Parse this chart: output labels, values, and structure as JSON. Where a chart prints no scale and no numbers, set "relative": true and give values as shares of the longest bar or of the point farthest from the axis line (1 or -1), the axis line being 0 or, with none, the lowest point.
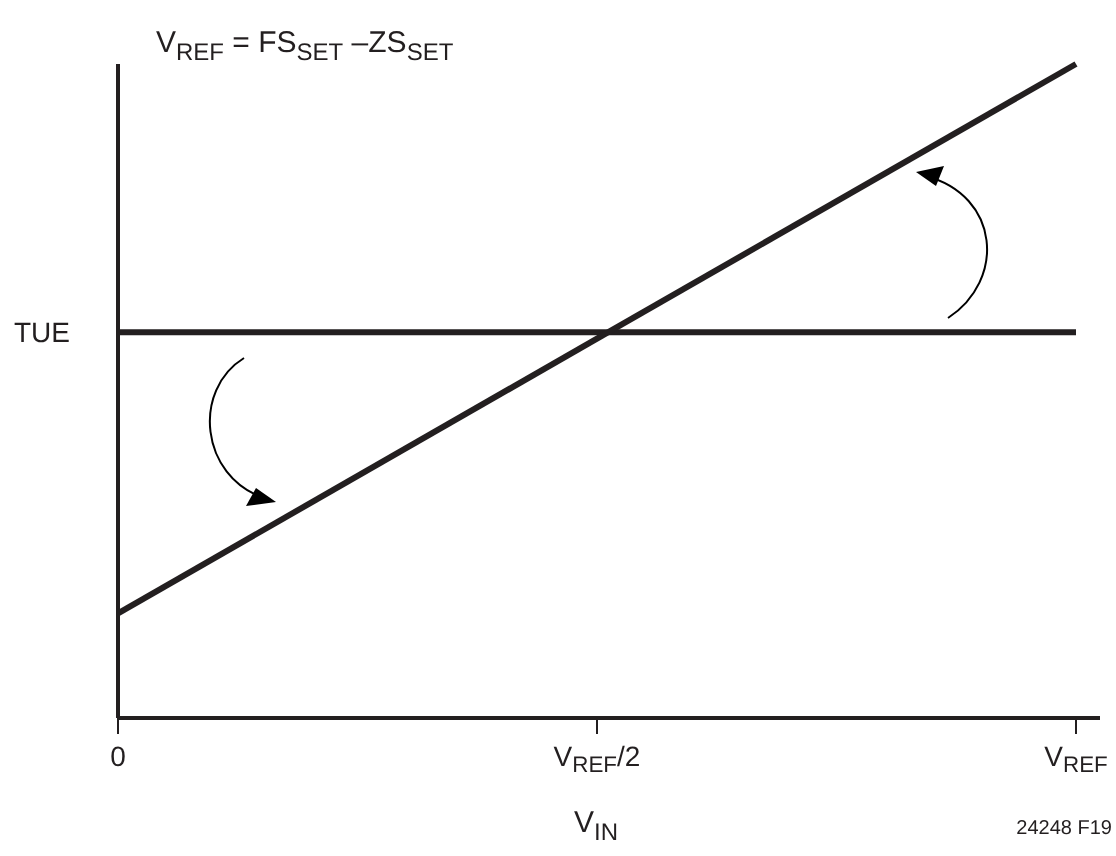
{
  "chart_data": {
    "type": "line",
    "relative": true,
    "xlabel": "V$_{IN}$",
    "categories": [
      "0",
      "V$_{REF}$/2",
      "V$_{REF}$"
    ],
    "series": [
      {
        "name": "TUE",
        "color": "#231f20",
        "values": [
          0.59,
          0.59,
          0.59
        ]
      },
      {
        "color": "#231f20",
        "values": [
          0.16,
          0.58,
          1
        ]
      }
    ],
    "annotations": [
      "V$_{REF}$ = FS$_{SET}$ –ZS$_{SET}$",
      "24248 F19"
    ],
    "legend": false,
    "grid": false,
    "marker": "none",
    "line_style": "solid"
  }
}
